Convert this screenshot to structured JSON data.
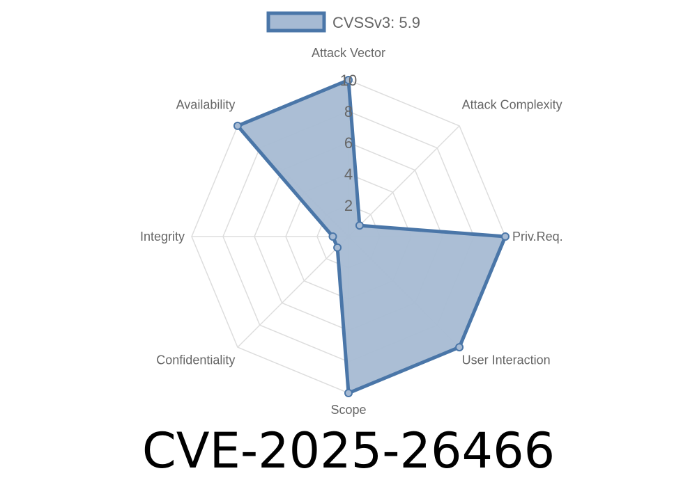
{
  "chart_data": {
    "type": "radar",
    "axes": [
      "Attack Vector",
      "Attack Complexity",
      "Priv.Req.",
      "User Interaction",
      "Scope",
      "Confidentiality",
      "Integrity",
      "Availability"
    ],
    "series": [
      {
        "name": "CVSSv3: 5.9",
        "values": [
          10,
          1,
          10,
          10,
          10,
          1,
          1,
          10
        ]
      }
    ],
    "rlim": [
      0,
      10
    ],
    "ticks": [
      "2",
      "4",
      "6",
      "8",
      "10"
    ],
    "tick_values": [
      2,
      4,
      6,
      8,
      10
    ],
    "legend_placement": "top",
    "grid": true,
    "colors": {
      "stroke": "#4a76a8",
      "fill": "#a6bad3",
      "grid": "#dddddd",
      "text": "#666666"
    }
  },
  "title": "CVE-2025-26466"
}
